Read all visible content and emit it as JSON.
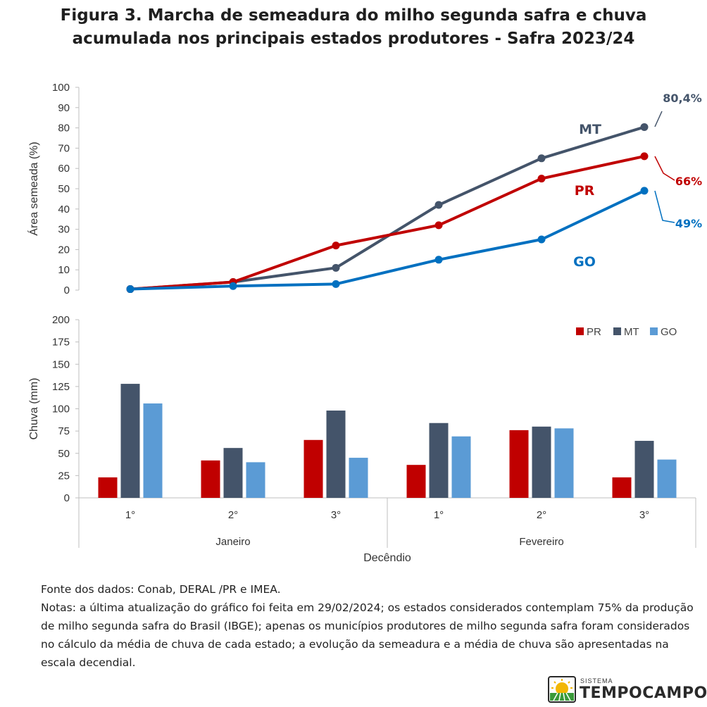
{
  "title": {
    "line1": "Figura 3. Marcha de semeadura do milho segunda safra e chuva",
    "line2": "acumulada nos principais estados produtores - Safra 2023/24"
  },
  "colors": {
    "PR": "#c00000",
    "MT": "#44546a",
    "GO": "#0070c0",
    "GO_bar": "#5b9bd5",
    "axis": "#bfbfbf"
  },
  "chart_data": [
    {
      "type": "line",
      "x": [
        "Jan 1°",
        "Jan 2°",
        "Jan 3°",
        "Fev 1°",
        "Fev 2°",
        "Fev 3°"
      ],
      "ylabel": "Área semeada (%)",
      "ylim": [
        0,
        100
      ],
      "yticks": [
        0,
        10,
        20,
        30,
        40,
        50,
        60,
        70,
        80,
        90,
        100
      ],
      "series": [
        {
          "name": "MT",
          "values": [
            0.5,
            4,
            11,
            42,
            65,
            80.4
          ],
          "end_label": "80,4%"
        },
        {
          "name": "PR",
          "values": [
            0.5,
            4,
            22,
            32,
            55,
            66
          ],
          "end_label": "66%"
        },
        {
          "name": "GO",
          "values": [
            0.5,
            2,
            3,
            15,
            25,
            49
          ],
          "end_label": "49%"
        }
      ]
    },
    {
      "type": "bar",
      "categories": [
        "1°",
        "2°",
        "3°",
        "1°",
        "2°",
        "3°"
      ],
      "groups": [
        "Janeiro",
        "Fevereiro"
      ],
      "xlabel": "Decêndio",
      "ylabel": "Chuva (mm)",
      "ylim": [
        0,
        200
      ],
      "yticks": [
        0,
        25,
        50,
        75,
        100,
        125,
        150,
        175,
        200
      ],
      "legend": "top-right",
      "series": [
        {
          "name": "PR",
          "values": [
            23,
            42,
            65,
            37,
            76,
            23
          ]
        },
        {
          "name": "MT",
          "values": [
            128,
            56,
            98,
            84,
            80,
            64
          ]
        },
        {
          "name": "GO",
          "values": [
            106,
            40,
            45,
            69,
            78,
            43
          ]
        }
      ]
    }
  ],
  "notes": {
    "source": "Fonte dos dados: Conab, DERAL /PR e IMEA.",
    "text": "Notas: a última atualização do gráfico foi feita em 29/02/2024; os estados considerados contemplam 75% da produção de milho segunda safra do Brasil (IBGE); apenas os municípios produtores de milho segunda safra foram considerados no cálculo da média de chuva de cada estado; a evolução da semeadura e a média de chuva são apresentadas na escala decendial."
  },
  "logo": {
    "small": "SISTEMA",
    "big": "TEMPOCAMPO"
  }
}
